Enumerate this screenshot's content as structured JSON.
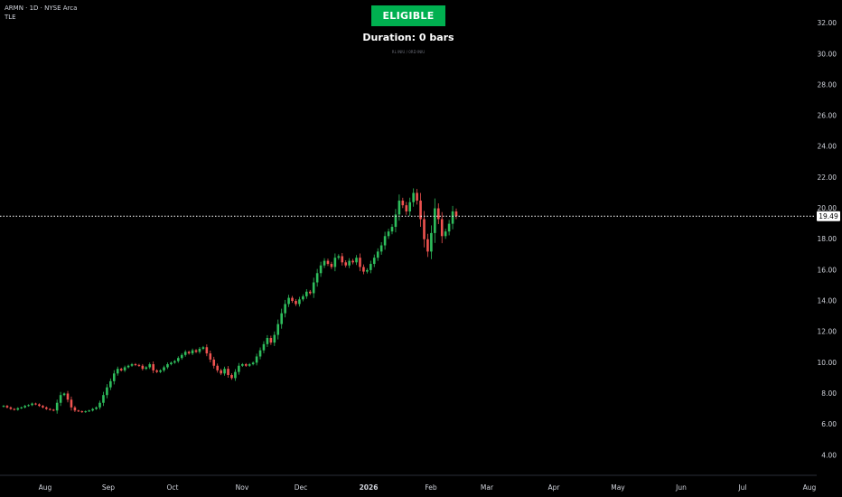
{
  "header": {
    "symbol_line": "ARMN · 1D · NYSE Arca",
    "indicator": "TLE"
  },
  "status": {
    "badge": "ELIGIBLE",
    "duration": "Duration: 0 bars",
    "note": "RL INIU / 0RD INIU"
  },
  "colors": {
    "up": "#26a69a",
    "up_bright": "#2ebd5c",
    "down": "#ef5350",
    "badge": "#00b050",
    "price_line": "#ffffff"
  },
  "chart_data": {
    "type": "candlestick",
    "title": "",
    "xlabel": "",
    "ylabel": "",
    "ylim": [
      2.7,
      33.5
    ],
    "y_ticks": [
      "32.00",
      "30.00",
      "28.00",
      "26.00",
      "24.00",
      "22.00",
      "20.00",
      "18.00",
      "16.00",
      "14.00",
      "12.00",
      "10.00",
      "8.00",
      "6.00",
      "4.00"
    ],
    "x_labels": [
      "Aug",
      "Sep",
      "Oct",
      "Nov",
      "Dec",
      "2026",
      "Feb",
      "Mar",
      "Apr",
      "May",
      "Jun",
      "Jul",
      "Aug"
    ],
    "last_price": "19.49",
    "grid": false,
    "series": [
      {
        "name": "",
        "closes": [
          7.2,
          7.1,
          7.0,
          6.95,
          7.05,
          7.1,
          7.2,
          7.25,
          7.35,
          7.3,
          7.2,
          7.1,
          7.0,
          6.95,
          6.9,
          7.4,
          7.9,
          8.0,
          7.6,
          7.1,
          6.9,
          6.85,
          6.8,
          6.85,
          6.9,
          7.0,
          7.1,
          7.4,
          7.9,
          8.4,
          8.8,
          9.3,
          9.6,
          9.5,
          9.7,
          9.8,
          9.9,
          9.85,
          9.8,
          9.6,
          9.7,
          9.9,
          9.5,
          9.4,
          9.5,
          9.7,
          9.9,
          10.0,
          10.1,
          10.3,
          10.5,
          10.7,
          10.6,
          10.8,
          10.7,
          10.9,
          11.0,
          10.6,
          10.2,
          9.8,
          9.5,
          9.3,
          9.6,
          9.2,
          9.0,
          9.4,
          9.8,
          9.9,
          9.8,
          9.9,
          10.0,
          10.4,
          10.8,
          11.2,
          11.6,
          11.3,
          11.8,
          12.5,
          13.2,
          13.8,
          14.2,
          14.0,
          13.8,
          14.1,
          14.3,
          14.6,
          14.5,
          15.2,
          15.8,
          16.3,
          16.6,
          16.4,
          16.2,
          16.8,
          16.9,
          16.5,
          16.3,
          16.6,
          16.5,
          16.8,
          16.2,
          15.9,
          16.0,
          16.4,
          16.8,
          17.2,
          17.6,
          18.2,
          18.5,
          18.8,
          19.6,
          20.5,
          20.2,
          19.8,
          20.4,
          21.0,
          20.5,
          19.3,
          18.0,
          17.2,
          18.4,
          20.0,
          19.3,
          18.2,
          18.5,
          19.0,
          19.8,
          19.49
        ]
      }
    ]
  }
}
